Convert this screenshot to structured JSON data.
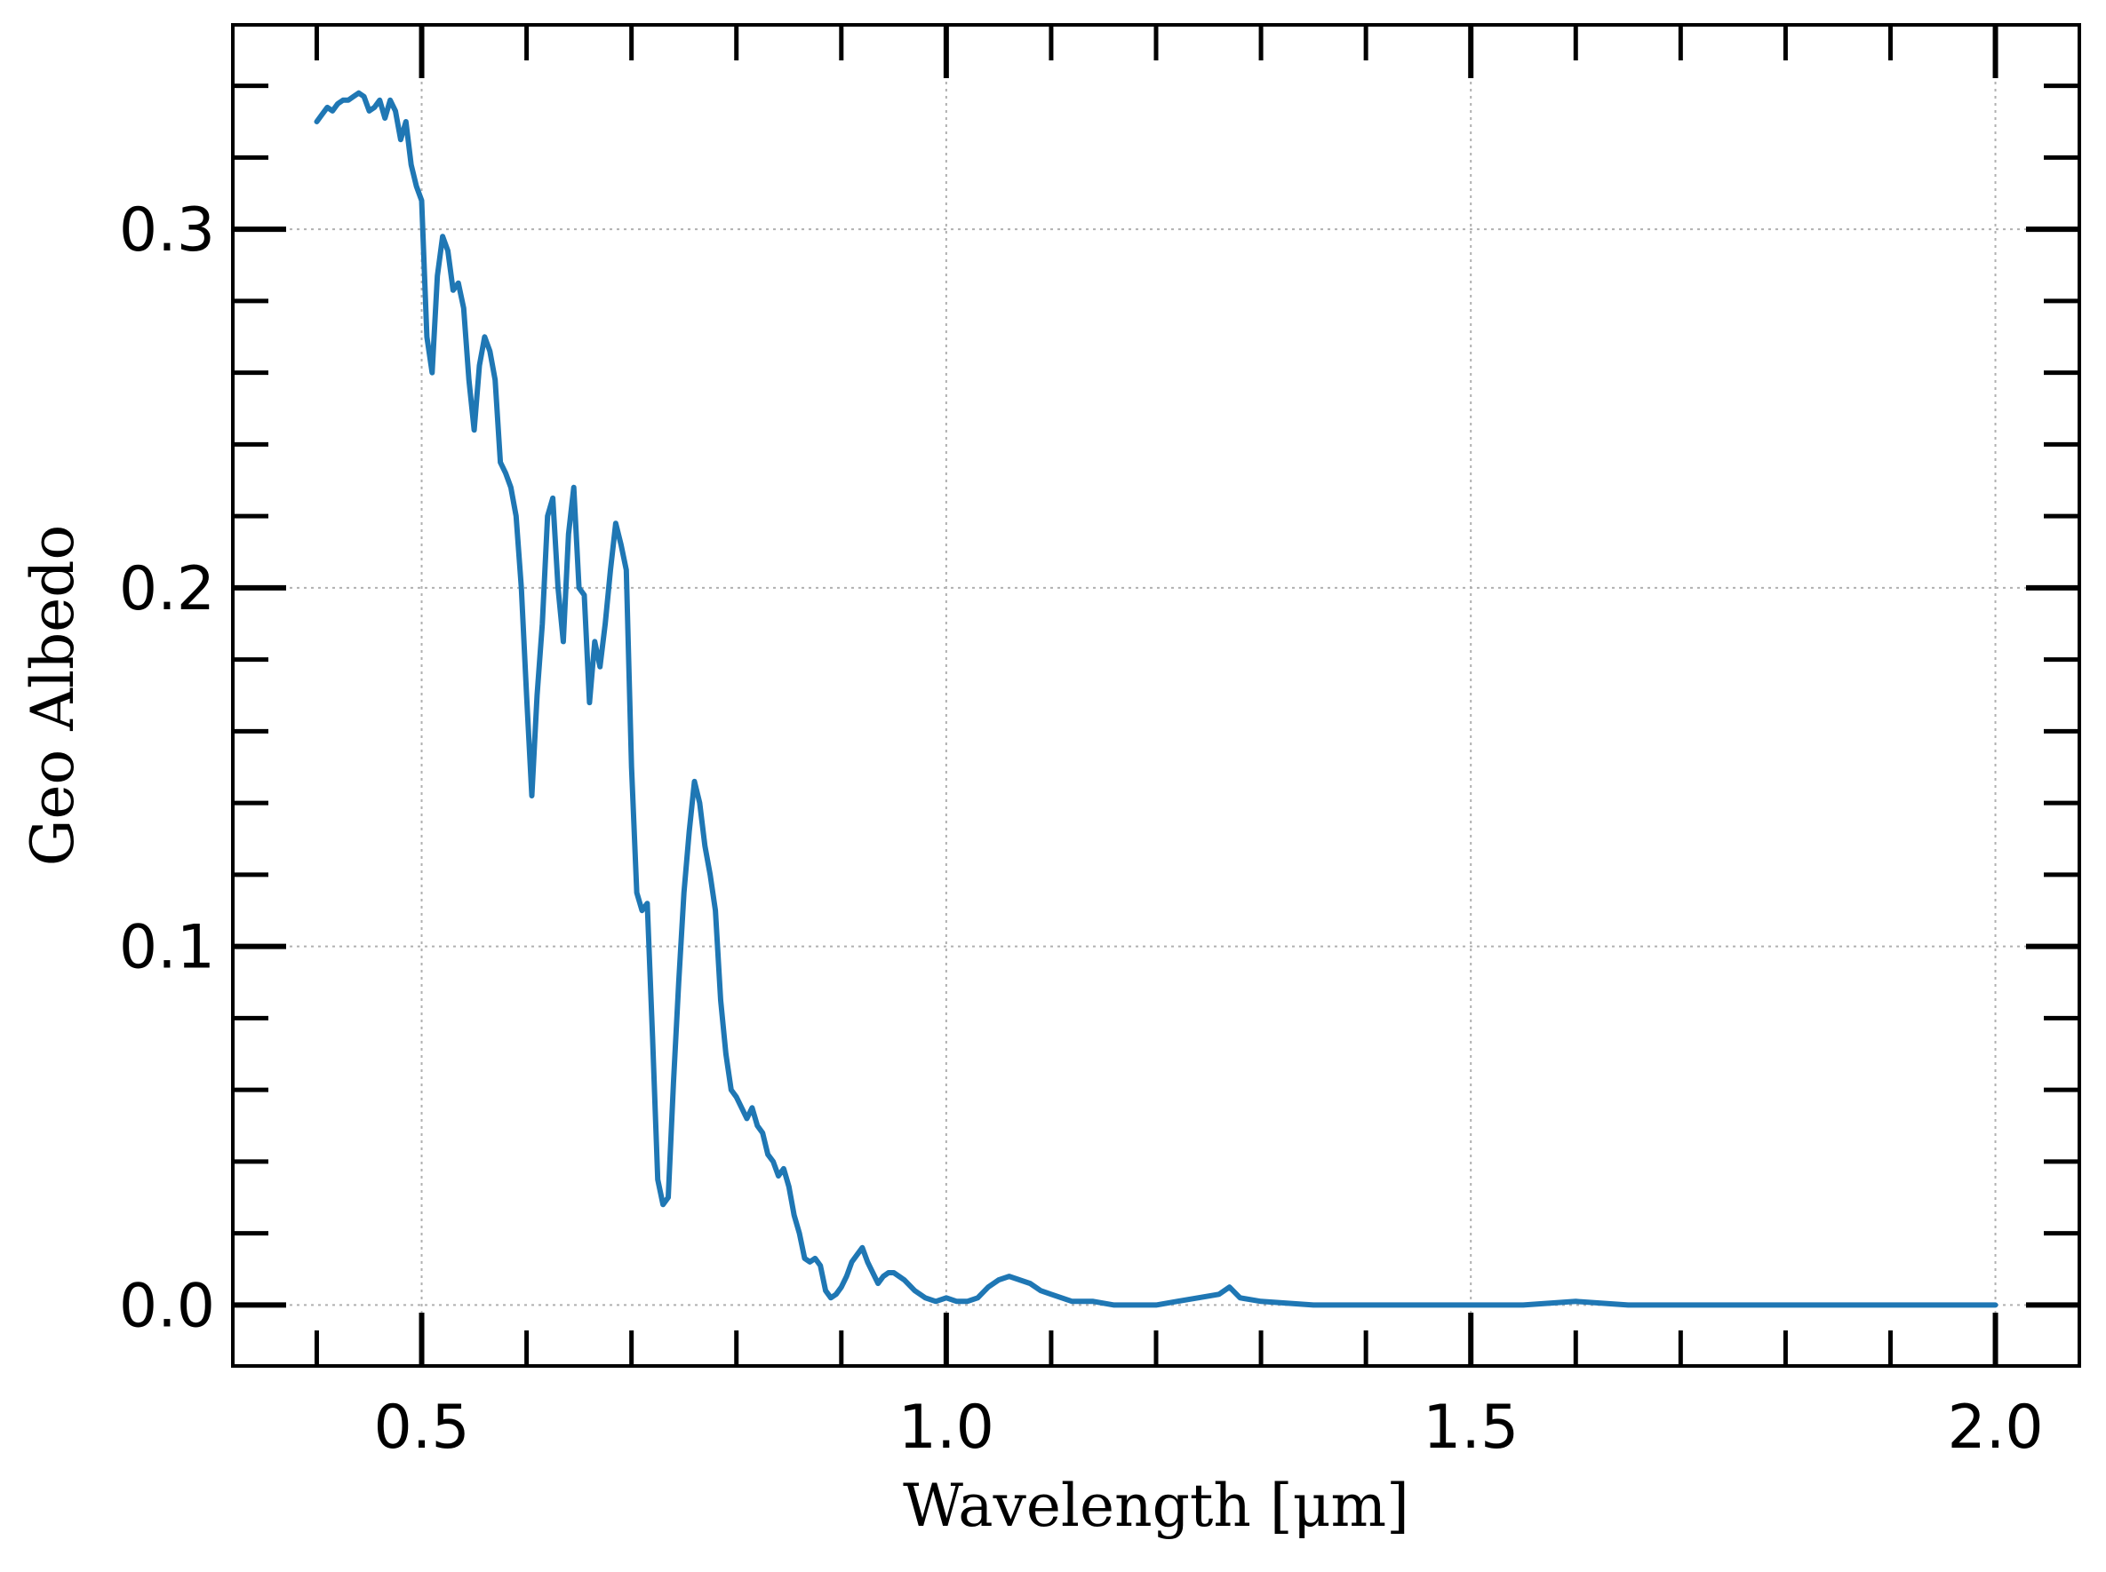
{
  "chart_data": {
    "type": "line",
    "title": "",
    "xlabel": "Wavelength [μm]",
    "ylabel": "Geo Albedo",
    "xlim": [
      0.32,
      2.08
    ],
    "ylim": [
      -0.017,
      0.357
    ],
    "x_ticks": [
      0.5,
      1.0,
      1.5,
      2.0
    ],
    "x_tick_labels": [
      "0.5",
      "1.0",
      "1.5",
      "2.0"
    ],
    "y_ticks": [
      0.0,
      0.1,
      0.2,
      0.3
    ],
    "y_tick_labels": [
      "0.0",
      "0.1",
      "0.2",
      "0.3"
    ],
    "grid": true,
    "legend": "none",
    "line_color": "#1f77b4",
    "series": [
      {
        "name": "",
        "x": [
          0.4,
          0.405,
          0.41,
          0.415,
          0.42,
          0.425,
          0.43,
          0.435,
          0.44,
          0.445,
          0.45,
          0.455,
          0.46,
          0.465,
          0.47,
          0.475,
          0.48,
          0.485,
          0.49,
          0.495,
          0.5,
          0.505,
          0.51,
          0.515,
          0.52,
          0.525,
          0.53,
          0.535,
          0.54,
          0.545,
          0.55,
          0.555,
          0.56,
          0.565,
          0.57,
          0.575,
          0.58,
          0.585,
          0.59,
          0.595,
          0.6,
          0.605,
          0.61,
          0.615,
          0.62,
          0.625,
          0.63,
          0.635,
          0.64,
          0.645,
          0.65,
          0.655,
          0.66,
          0.665,
          0.67,
          0.675,
          0.68,
          0.685,
          0.69,
          0.695,
          0.7,
          0.705,
          0.71,
          0.715,
          0.72,
          0.725,
          0.73,
          0.735,
          0.74,
          0.745,
          0.75,
          0.755,
          0.76,
          0.765,
          0.77,
          0.775,
          0.78,
          0.785,
          0.79,
          0.795,
          0.8,
          0.805,
          0.81,
          0.815,
          0.82,
          0.825,
          0.83,
          0.835,
          0.84,
          0.845,
          0.85,
          0.855,
          0.86,
          0.865,
          0.87,
          0.875,
          0.88,
          0.885,
          0.89,
          0.895,
          0.9,
          0.905,
          0.91,
          0.915,
          0.92,
          0.925,
          0.93,
          0.935,
          0.94,
          0.945,
          0.95,
          0.96,
          0.97,
          0.98,
          0.99,
          1.0,
          1.01,
          1.02,
          1.03,
          1.04,
          1.05,
          1.06,
          1.07,
          1.08,
          1.09,
          1.1,
          1.12,
          1.14,
          1.16,
          1.18,
          1.2,
          1.22,
          1.24,
          1.26,
          1.27,
          1.28,
          1.3,
          1.35,
          1.4,
          1.45,
          1.5,
          1.55,
          1.6,
          1.65,
          1.7,
          1.8,
          1.9,
          2.0
        ],
        "y": [
          0.33,
          0.332,
          0.334,
          0.333,
          0.335,
          0.336,
          0.336,
          0.337,
          0.338,
          0.337,
          0.333,
          0.334,
          0.336,
          0.331,
          0.336,
          0.333,
          0.325,
          0.33,
          0.318,
          0.312,
          0.308,
          0.27,
          0.26,
          0.287,
          0.298,
          0.294,
          0.283,
          0.285,
          0.278,
          0.258,
          0.244,
          0.262,
          0.27,
          0.266,
          0.258,
          0.235,
          0.232,
          0.228,
          0.22,
          0.2,
          0.17,
          0.142,
          0.17,
          0.19,
          0.22,
          0.225,
          0.2,
          0.185,
          0.215,
          0.228,
          0.2,
          0.198,
          0.168,
          0.185,
          0.178,
          0.19,
          0.205,
          0.218,
          0.212,
          0.205,
          0.15,
          0.115,
          0.11,
          0.112,
          0.075,
          0.035,
          0.028,
          0.03,
          0.062,
          0.09,
          0.115,
          0.132,
          0.146,
          0.14,
          0.128,
          0.12,
          0.11,
          0.085,
          0.07,
          0.06,
          0.058,
          0.055,
          0.052,
          0.055,
          0.05,
          0.048,
          0.042,
          0.04,
          0.036,
          0.038,
          0.033,
          0.025,
          0.02,
          0.013,
          0.012,
          0.013,
          0.011,
          0.004,
          0.002,
          0.003,
          0.005,
          0.008,
          0.012,
          0.014,
          0.016,
          0.012,
          0.009,
          0.006,
          0.008,
          0.009,
          0.009,
          0.007,
          0.004,
          0.002,
          0.001,
          0.002,
          0.001,
          0.001,
          0.002,
          0.005,
          0.007,
          0.008,
          0.007,
          0.006,
          0.004,
          0.003,
          0.001,
          0.001,
          0.0,
          0.0,
          0.0,
          0.001,
          0.002,
          0.003,
          0.005,
          0.002,
          0.001,
          0.0,
          0.0,
          0.0,
          0.0,
          0.0,
          0.001,
          0.0,
          0.0,
          0.0,
          0.0,
          0.0
        ]
      }
    ]
  }
}
